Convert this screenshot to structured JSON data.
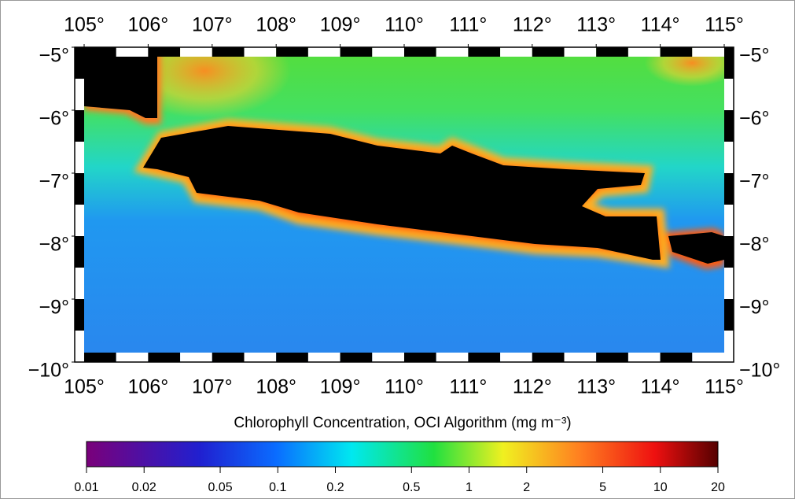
{
  "map": {
    "lonlim": [
      105,
      115
    ],
    "latlim": [
      -5,
      -10
    ],
    "lon_ticks": [
      {
        "value": 105,
        "label": "105°"
      },
      {
        "value": 106,
        "label": "106°"
      },
      {
        "value": 107,
        "label": "107°"
      },
      {
        "value": 108,
        "label": "108°"
      },
      {
        "value": 109,
        "label": "109°"
      },
      {
        "value": 110,
        "label": "110°"
      },
      {
        "value": 111,
        "label": "111°"
      },
      {
        "value": 112,
        "label": "112°"
      },
      {
        "value": 113,
        "label": "113°"
      },
      {
        "value": 114,
        "label": "114°"
      },
      {
        "value": 115,
        "label": "115°"
      }
    ],
    "lat_ticks": [
      {
        "value": -5,
        "label": "−5°"
      },
      {
        "value": -6,
        "label": "−6°"
      },
      {
        "value": -7,
        "label": "−7°"
      },
      {
        "value": -8,
        "label": "−8°"
      },
      {
        "value": -9,
        "label": "−9°"
      },
      {
        "value": -10,
        "label": "−10°"
      }
    ]
  },
  "colorbar": {
    "label": "Chlorophyll Concentration, OCI Algorithm (mg m⁻³)",
    "scale": "log",
    "lim": [
      0.01,
      20
    ],
    "ticks": [
      0.01,
      0.02,
      0.05,
      0.1,
      0.2,
      0.5,
      1,
      2,
      5,
      10,
      20
    ]
  }
}
